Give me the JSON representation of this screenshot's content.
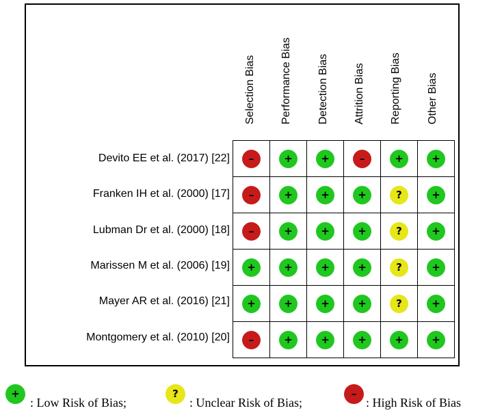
{
  "columns": [
    "Selection Bias",
    "Performance Bias",
    "Detection Bias",
    "Attrition Bias",
    "Reporting Bias",
    "Other Bias"
  ],
  "studies": [
    {
      "label": "Devito EE et al. (2017) [22]",
      "ratings": [
        "high",
        "low",
        "low",
        "high",
        "low",
        "low"
      ]
    },
    {
      "label": "Franken IH et al. (2000) [17]",
      "ratings": [
        "high",
        "low",
        "low",
        "low",
        "unclear",
        "low"
      ]
    },
    {
      "label": "Lubman Dr et al. (2000) [18]",
      "ratings": [
        "high",
        "low",
        "low",
        "low",
        "unclear",
        "low"
      ]
    },
    {
      "label": "Marissen M et al. (2006) [19]",
      "ratings": [
        "low",
        "low",
        "low",
        "low",
        "unclear",
        "low"
      ]
    },
    {
      "label": "Mayer AR et al. (2016) [21]",
      "ratings": [
        "low",
        "low",
        "low",
        "low",
        "unclear",
        "low"
      ]
    },
    {
      "label": "Montgomery et al. (2010) [20]",
      "ratings": [
        "high",
        "low",
        "low",
        "low",
        "low",
        "low"
      ]
    }
  ],
  "symbols": {
    "low": "+",
    "unclear": "?",
    "high": "–"
  },
  "legend": {
    "low": ": Low Risk of Bias;",
    "unclear": ": Unclear Risk of Bias;",
    "high": ": High Risk of Bias"
  },
  "colors": {
    "low": "#1fc71f",
    "unclear": "#e6e618",
    "high": "#c71a1a"
  }
}
